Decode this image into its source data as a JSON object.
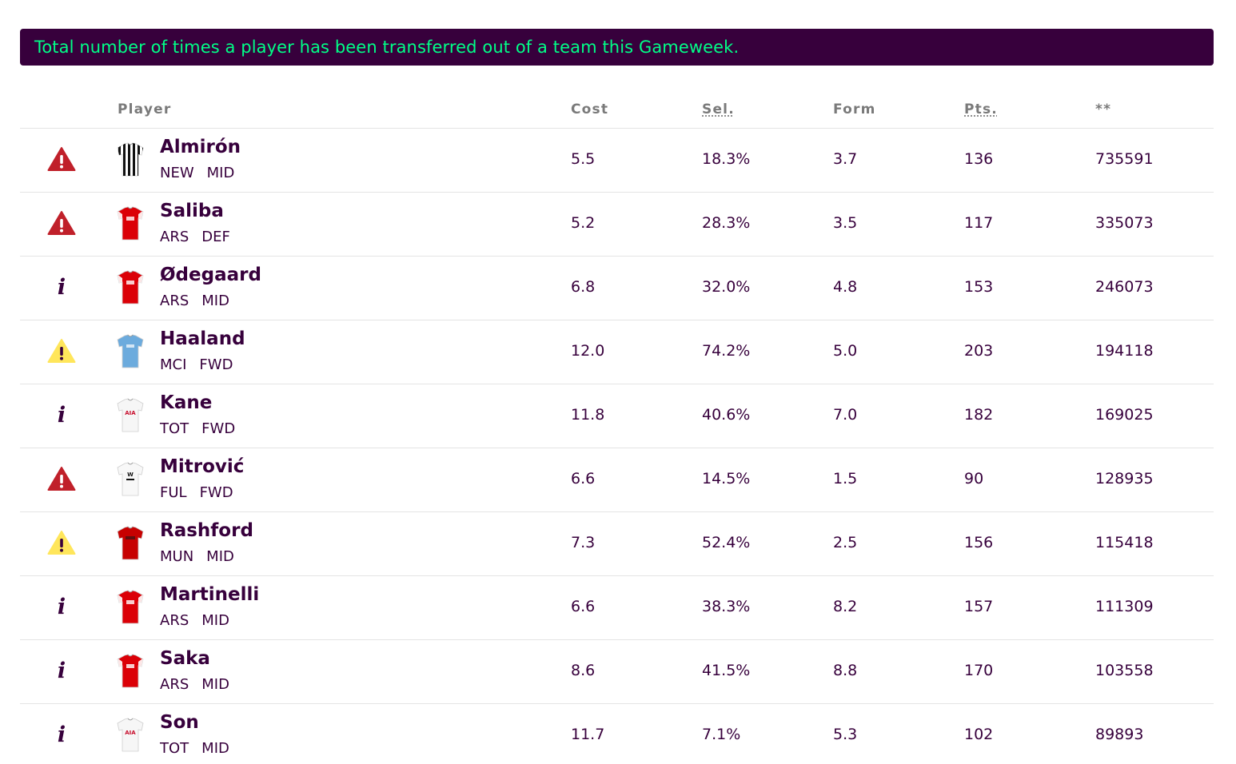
{
  "banner": {
    "text": "Total number of times a player has been transferred out of a team this Gameweek."
  },
  "headers": {
    "player": "Player",
    "cost": "Cost",
    "sel": "Sel.",
    "form": "Form",
    "pts": "Pts.",
    "transfers": "**"
  },
  "colors": {
    "brand_purple": "#37003c",
    "brand_green": "#00ff87",
    "status_red": "#c0202a",
    "status_yellow": "#ffe65b"
  },
  "players": [
    {
      "status": "red",
      "status_icon": "warning-red-icon",
      "team": "NEW",
      "shirt": "newcastle",
      "name": "Almirón",
      "position": "MID",
      "cost": "5.5",
      "sel": "18.3%",
      "form": "3.7",
      "pts": "136",
      "transfers": "735591"
    },
    {
      "status": "red",
      "status_icon": "warning-red-icon",
      "team": "ARS",
      "shirt": "arsenal",
      "name": "Saliba",
      "position": "DEF",
      "cost": "5.2",
      "sel": "28.3%",
      "form": "3.5",
      "pts": "117",
      "transfers": "335073"
    },
    {
      "status": "info",
      "status_icon": "info-icon",
      "team": "ARS",
      "shirt": "arsenal",
      "name": "Ødegaard",
      "position": "MID",
      "cost": "6.8",
      "sel": "32.0%",
      "form": "4.8",
      "pts": "153",
      "transfers": "246073"
    },
    {
      "status": "yellow",
      "status_icon": "warning-yellow-icon",
      "team": "MCI",
      "shirt": "mancity",
      "name": "Haaland",
      "position": "FWD",
      "cost": "12.0",
      "sel": "74.2%",
      "form": "5.0",
      "pts": "203",
      "transfers": "194118"
    },
    {
      "status": "info",
      "status_icon": "info-icon",
      "team": "TOT",
      "shirt": "spurs",
      "name": "Kane",
      "position": "FWD",
      "cost": "11.8",
      "sel": "40.6%",
      "form": "7.0",
      "pts": "182",
      "transfers": "169025"
    },
    {
      "status": "red",
      "status_icon": "warning-red-icon",
      "team": "FUL",
      "shirt": "fulham",
      "name": "Mitrović",
      "position": "FWD",
      "cost": "6.6",
      "sel": "14.5%",
      "form": "1.5",
      "pts": "90",
      "transfers": "128935"
    },
    {
      "status": "yellow",
      "status_icon": "warning-yellow-icon",
      "team": "MUN",
      "shirt": "manutd",
      "name": "Rashford",
      "position": "MID",
      "cost": "7.3",
      "sel": "52.4%",
      "form": "2.5",
      "pts": "156",
      "transfers": "115418"
    },
    {
      "status": "info",
      "status_icon": "info-icon",
      "team": "ARS",
      "shirt": "arsenal",
      "name": "Martinelli",
      "position": "MID",
      "cost": "6.6",
      "sel": "38.3%",
      "form": "8.2",
      "pts": "157",
      "transfers": "111309"
    },
    {
      "status": "info",
      "status_icon": "info-icon",
      "team": "ARS",
      "shirt": "arsenal",
      "name": "Saka",
      "position": "MID",
      "cost": "8.6",
      "sel": "41.5%",
      "form": "8.8",
      "pts": "170",
      "transfers": "103558"
    },
    {
      "status": "info",
      "status_icon": "info-icon",
      "team": "TOT",
      "shirt": "spurs",
      "name": "Son",
      "position": "MID",
      "cost": "11.7",
      "sel": "7.1%",
      "form": "5.3",
      "pts": "102",
      "transfers": "89893"
    }
  ]
}
